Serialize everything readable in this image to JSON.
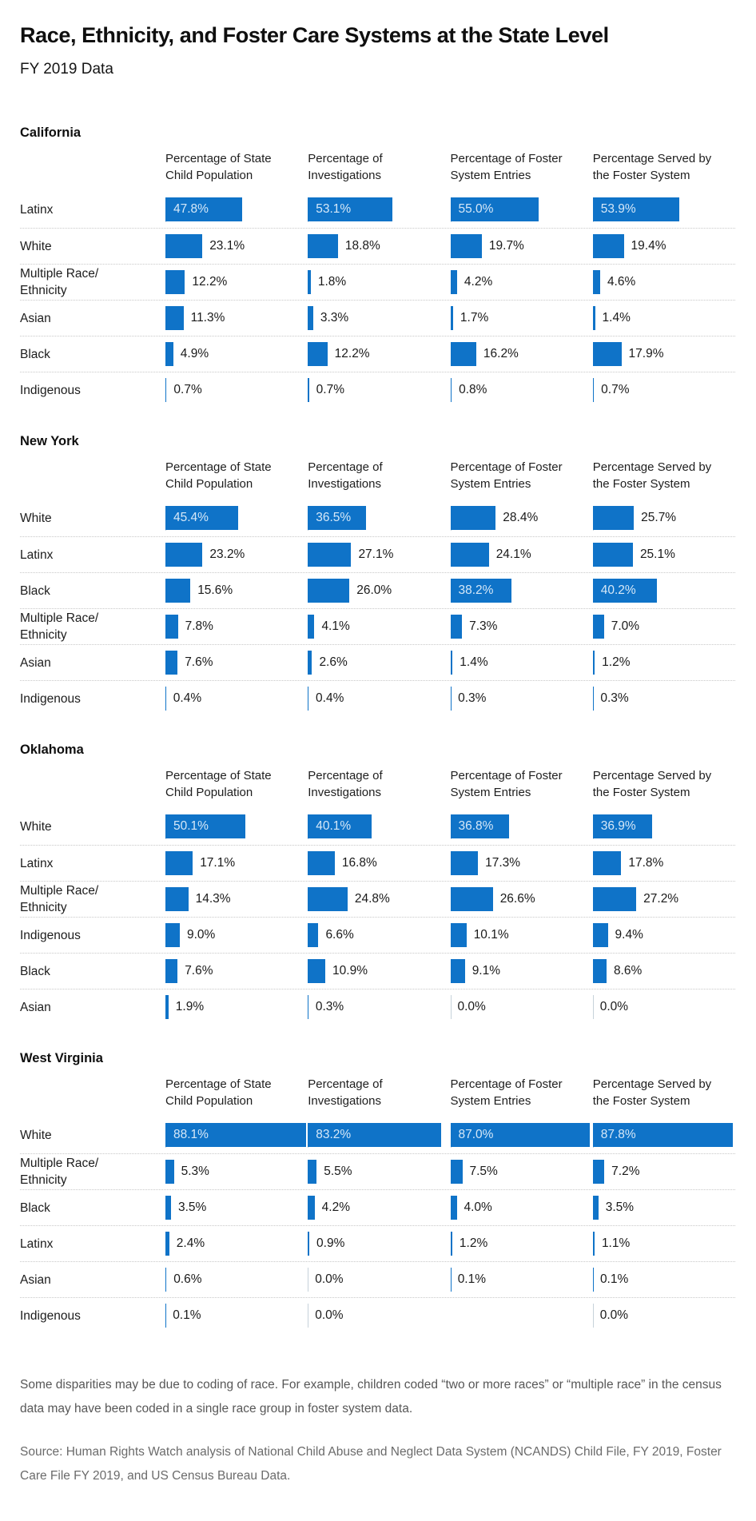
{
  "header": {
    "title": "Race, Ethnicity, and Foster Care Systems at the State Level",
    "subtitle": "FY 2019 Data"
  },
  "chart_data": {
    "type": "bar",
    "orientation": "horizontal",
    "unit": "%",
    "xlim": [
      0,
      100
    ],
    "bar_color": "#0f73c8",
    "zero_axis_color": "#c6d2da",
    "inside_label_threshold": 36,
    "value_format": "one-decimal-percent",
    "columns": [
      "Percentage of State Child Population",
      "Percentage of Investigations",
      "Percentage of Foster System Entries",
      "Percentage Served by the Foster System"
    ],
    "states": [
      {
        "name": "California",
        "rows": [
          {
            "label": "Latinx",
            "values": [
              47.8,
              53.1,
              55.0,
              53.9
            ]
          },
          {
            "label": "White",
            "values": [
              23.1,
              18.8,
              19.7,
              19.4
            ]
          },
          {
            "label": "Multiple Race/ Ethnicity",
            "values": [
              12.2,
              1.8,
              4.2,
              4.6
            ]
          },
          {
            "label": "Asian",
            "values": [
              11.3,
              3.3,
              1.7,
              1.4
            ]
          },
          {
            "label": "Black",
            "values": [
              4.9,
              12.2,
              16.2,
              17.9
            ]
          },
          {
            "label": "Indigenous",
            "values": [
              0.7,
              0.7,
              0.8,
              0.7
            ]
          }
        ]
      },
      {
        "name": "New York",
        "rows": [
          {
            "label": "White",
            "values": [
              45.4,
              36.5,
              28.4,
              25.7
            ]
          },
          {
            "label": "Latinx",
            "values": [
              23.2,
              27.1,
              24.1,
              25.1
            ]
          },
          {
            "label": "Black",
            "values": [
              15.6,
              26.0,
              38.2,
              40.2
            ]
          },
          {
            "label": "Multiple Race/ Ethnicity",
            "values": [
              7.8,
              4.1,
              7.3,
              7.0
            ]
          },
          {
            "label": "Asian",
            "values": [
              7.6,
              2.6,
              1.4,
              1.2
            ]
          },
          {
            "label": "Indigenous",
            "values": [
              0.4,
              0.4,
              0.3,
              0.3
            ]
          }
        ]
      },
      {
        "name": "Oklahoma",
        "rows": [
          {
            "label": "White",
            "values": [
              50.1,
              40.1,
              36.8,
              36.9
            ]
          },
          {
            "label": "Latinx",
            "values": [
              17.1,
              16.8,
              17.3,
              17.8
            ]
          },
          {
            "label": "Multiple Race/ Ethnicity",
            "values": [
              14.3,
              24.8,
              26.6,
              27.2
            ]
          },
          {
            "label": "Indigenous",
            "values": [
              9.0,
              6.6,
              10.1,
              9.4
            ]
          },
          {
            "label": "Black",
            "values": [
              7.6,
              10.9,
              9.1,
              8.6
            ]
          },
          {
            "label": "Asian",
            "values": [
              1.9,
              0.3,
              0.0,
              0.0
            ]
          }
        ]
      },
      {
        "name": "West Virginia",
        "rows": [
          {
            "label": "White",
            "values": [
              88.1,
              83.2,
              87.0,
              87.8
            ]
          },
          {
            "label": "Multiple Race/ Ethnicity",
            "values": [
              5.3,
              5.5,
              7.5,
              7.2
            ]
          },
          {
            "label": "Black",
            "values": [
              3.5,
              4.2,
              4.0,
              3.5
            ]
          },
          {
            "label": "Latinx",
            "values": [
              2.4,
              0.9,
              1.2,
              1.1
            ]
          },
          {
            "label": "Asian",
            "values": [
              0.6,
              0.0,
              0.1,
              0.1
            ]
          },
          {
            "label": "Indigenous",
            "values": [
              0.1,
              0.0,
              null,
              0.0
            ]
          }
        ]
      }
    ]
  },
  "footnote": "Some disparities may be due to coding of race. For example, children coded “two or more races” or “multiple race” in the census data may have been coded in a single race group in foster system data.",
  "source": "Source: Human Rights Watch analysis of National Child Abuse and Neglect Data System (NCANDS) Child File, FY 2019, Foster Care File FY 2019, and US Census Bureau Data."
}
